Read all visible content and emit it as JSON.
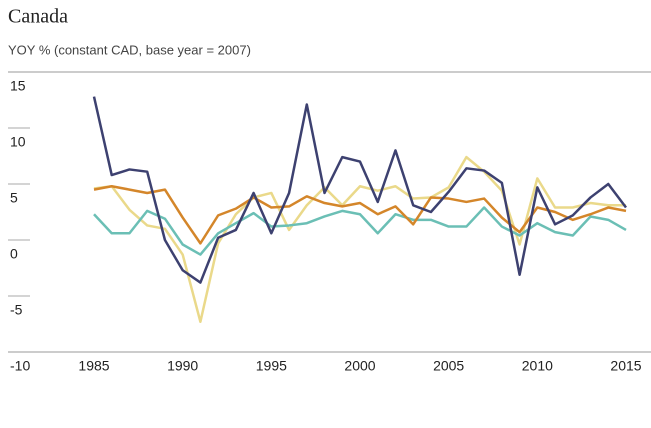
{
  "chart_data": {
    "type": "line",
    "title": "Canada",
    "subtitle": "YOY % (constant CAD, base year = 2007)",
    "x": [
      1985,
      1986,
      1987,
      1988,
      1989,
      1990,
      1991,
      1992,
      1993,
      1994,
      1995,
      1996,
      1997,
      1998,
      1999,
      2000,
      2001,
      2002,
      2003,
      2004,
      2005,
      2006,
      2007,
      2008,
      2009,
      2010,
      2011,
      2012,
      2013,
      2014,
      2015
    ],
    "series": [
      {
        "color": "#ead98a",
        "values": [
          4.6,
          4.8,
          2.7,
          1.3,
          1.0,
          -1.3,
          -7.3,
          -0.3,
          2.3,
          3.8,
          4.2,
          0.9,
          3.1,
          4.7,
          3.1,
          4.8,
          4.4,
          4.8,
          3.7,
          3.8,
          4.7,
          7.4,
          6.1,
          4.4,
          -0.4,
          5.5,
          2.9,
          2.9,
          3.3,
          3.1,
          3.1
        ]
      },
      {
        "color": "#6bbfb5",
        "values": [
          2.3,
          0.6,
          0.6,
          2.6,
          1.9,
          -0.4,
          -1.3,
          0.6,
          1.5,
          2.4,
          1.2,
          1.3,
          1.5,
          2.1,
          2.6,
          2.3,
          0.6,
          2.3,
          1.8,
          1.8,
          1.2,
          1.2,
          2.9,
          1.2,
          0.4,
          1.5,
          0.7,
          0.4,
          2.1,
          1.8,
          0.9
        ]
      },
      {
        "color": "#d4862a",
        "values": [
          4.5,
          4.8,
          4.5,
          4.2,
          4.5,
          2.0,
          -0.3,
          2.2,
          2.8,
          3.8,
          2.9,
          3.0,
          3.9,
          3.3,
          3.0,
          3.3,
          2.3,
          3.0,
          1.4,
          3.8,
          3.7,
          3.4,
          3.7,
          2.0,
          0.7,
          2.9,
          2.5,
          1.8,
          2.3,
          2.9,
          2.6
        ]
      },
      {
        "color": "#3d4170",
        "values": [
          12.8,
          5.8,
          6.3,
          6.1,
          0.0,
          -2.7,
          -3.8,
          0.2,
          0.9,
          4.2,
          0.6,
          4.2,
          12.1,
          4.2,
          7.4,
          7.0,
          3.4,
          8.0,
          3.1,
          2.5,
          4.3,
          6.4,
          6.2,
          5.1,
          -3.1,
          4.7,
          1.4,
          2.2,
          3.8,
          5.0,
          2.9
        ]
      }
    ],
    "xlim": [
      1985,
      2015
    ],
    "xticks": [
      1985,
      1990,
      1995,
      2000,
      2005,
      2010,
      2015
    ],
    "ylim": [
      -10,
      15
    ],
    "yticks": [
      15,
      10,
      5,
      0,
      -5,
      -10
    ]
  }
}
